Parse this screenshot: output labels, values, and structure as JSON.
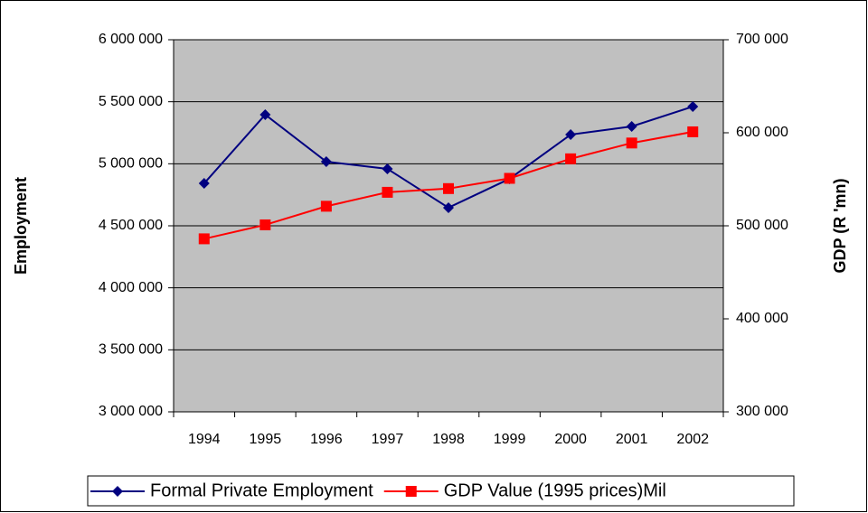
{
  "chart_data": {
    "type": "line",
    "categories": [
      "1994",
      "1995",
      "1996",
      "1997",
      "1998",
      "1999",
      "2000",
      "2001",
      "2002"
    ],
    "y_label": "Employment",
    "y2_label": "GDP (R 'mn)",
    "series": [
      {
        "name": "Formal Private Employment",
        "color": "#000080",
        "marker": "diamond",
        "values": [
          4842000,
          5396000,
          5017000,
          4959000,
          4646000,
          4879000,
          5235000,
          5301000,
          5461000
        ]
      },
      {
        "name": "GDP Value (1995 prices)Mil",
        "color": "#ff0000",
        "marker": "square",
        "axis": "y2",
        "values": [
          486000,
          501000,
          521000,
          536000,
          540000,
          551000,
          572000,
          589000,
          601000
        ]
      }
    ],
    "ylim": [
      3000000,
      6000000
    ],
    "yticks": [
      {
        "value": 3000000,
        "label": "3 000 000"
      },
      {
        "value": 3500000,
        "label": "3 500 000"
      },
      {
        "value": 4000000,
        "label": "4 000 000"
      },
      {
        "value": 4500000,
        "label": "4 500 000"
      },
      {
        "value": 5000000,
        "label": "5 000 000"
      },
      {
        "value": 5500000,
        "label": "5 500 000"
      },
      {
        "value": 6000000,
        "label": "6 000 000"
      }
    ],
    "y2lim": [
      300000,
      700000
    ],
    "y2ticks": [
      {
        "value": 300000,
        "label": "300 000"
      },
      {
        "value": 400000,
        "label": "400 000"
      },
      {
        "value": 500000,
        "label": "500 000"
      },
      {
        "value": 600000,
        "label": "600 000"
      },
      {
        "value": 700000,
        "label": "700 000"
      }
    ],
    "grid": true,
    "legend": "bottom"
  }
}
